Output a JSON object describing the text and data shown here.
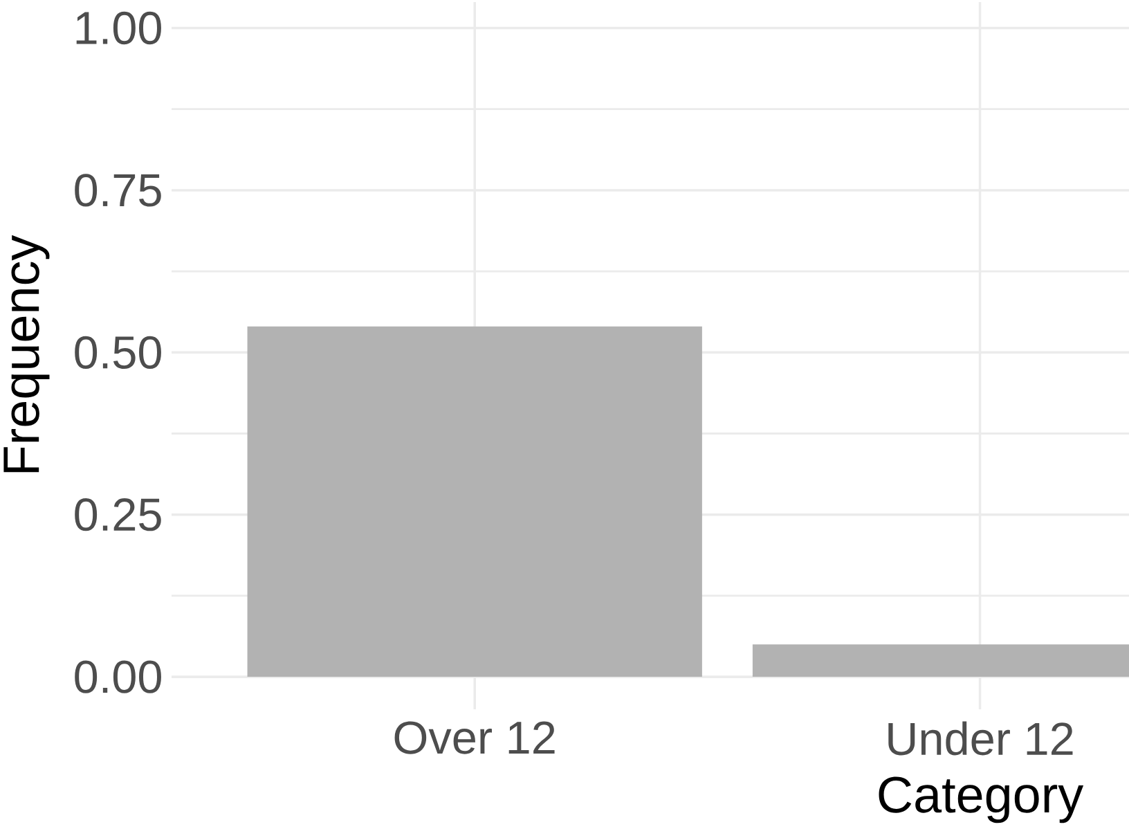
{
  "chart_data": {
    "type": "bar",
    "xlabel": "Category",
    "ylabel": "Frequency",
    "categories": [
      "Over 12",
      "Under 12"
    ],
    "values": [
      0.54,
      0.05
    ],
    "color": "#b2b2b2",
    "ylim": [
      -0.05,
      1.04
    ],
    "yticks": [
      {
        "value": 0,
        "label": "0.00"
      },
      {
        "value": 0.25,
        "label": "0.25"
      },
      {
        "value": 0.5,
        "label": "0.50"
      },
      {
        "value": 0.75,
        "label": "0.75"
      },
      {
        "value": 1,
        "label": "1.00"
      }
    ],
    "grid": true
  }
}
